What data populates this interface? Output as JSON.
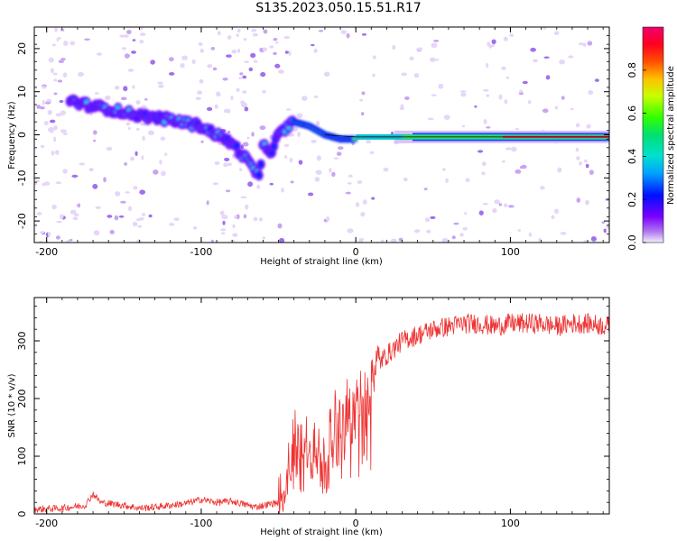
{
  "title": "S135.2023.050.15.51.R17",
  "chart_data": [
    {
      "type": "heatmap",
      "xlabel": "Height of straight line (km)",
      "ylabel": "Frequency (Hz)",
      "xlim": [
        -208,
        164
      ],
      "ylim": [
        -25,
        25
      ],
      "xticks": [
        "-200",
        "-100",
        "0",
        "100"
      ],
      "xtick_values": [
        -200,
        -100,
        0,
        100
      ],
      "yticks": [
        "-20",
        "-10",
        "0",
        "10",
        "20"
      ],
      "ytick_values": [
        -20,
        -10,
        0,
        10,
        20
      ],
      "ridge": {
        "x": [
          -185,
          -175,
          -160,
          -140,
          -120,
          -100,
          -90,
          -80,
          -70,
          -62,
          -60,
          -55,
          -50,
          -40,
          -30,
          -20,
          -10,
          0,
          20,
          60,
          100,
          130,
          164
        ],
        "y": [
          8,
          7,
          6,
          4.5,
          3.5,
          2,
          0,
          -2,
          -6,
          -10,
          -2,
          -4,
          0,
          3,
          2,
          0,
          -1,
          -1,
          -1,
          -1,
          -0.5,
          0,
          0
        ]
      },
      "colorbar": {
        "label": "Normalized spectral amplitude",
        "range": [
          0,
          1
        ],
        "ticks": [
          "0.0",
          "0.2",
          "0.4",
          "0.6",
          "0.8"
        ],
        "tick_values": [
          0,
          0.2,
          0.4,
          0.6,
          0.8
        ]
      },
      "grid": false
    },
    {
      "type": "line",
      "xlabel": "Height of straight line (km)",
      "ylabel": "SNR (10 * v/v)",
      "xlim": [
        -208,
        164
      ],
      "ylim": [
        0,
        375
      ],
      "xticks": [
        "-200",
        "-100",
        "0",
        "100"
      ],
      "xtick_values": [
        -200,
        -100,
        0,
        100
      ],
      "yticks": [
        "0",
        "100",
        "200",
        "300"
      ],
      "ytick_values": [
        0,
        100,
        200,
        300
      ],
      "color": "#ee3333",
      "series": [
        {
          "x": [
            -208,
            -190,
            -175,
            -170,
            -165,
            -150,
            -140,
            -130,
            -110,
            -100,
            -90,
            -80,
            -65,
            -50,
            -45,
            -40,
            -35,
            -30,
            -25,
            -20,
            -15,
            -10,
            -5,
            0,
            10,
            20,
            30,
            40,
            50,
            60,
            70,
            80,
            90,
            100,
            110,
            120,
            130,
            140,
            150,
            164
          ],
          "values": [
            8,
            10,
            15,
            35,
            20,
            15,
            10,
            12,
            18,
            25,
            20,
            22,
            12,
            20,
            60,
            150,
            120,
            130,
            110,
            90,
            170,
            180,
            190,
            195,
            250,
            275,
            300,
            310,
            320,
            325,
            330,
            330,
            325,
            330,
            330,
            330,
            325,
            330,
            330,
            325
          ]
        }
      ],
      "grid": false
    }
  ]
}
